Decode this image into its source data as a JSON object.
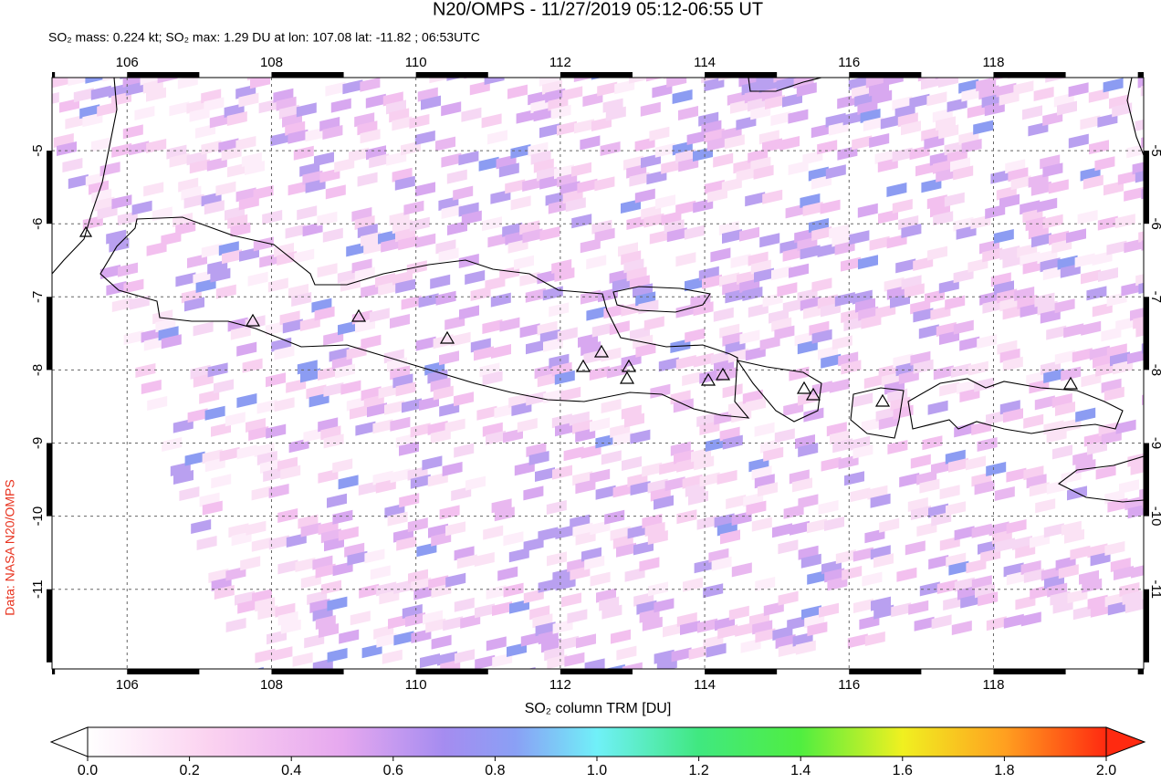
{
  "header": {
    "title": "N20/OMPS - 11/27/2019 05:12-06:55 UT",
    "subtitle": "SO₂ mass: 0.224 kt; SO₂ max: 1.29 DU at lon: 107.08 lat: -11.82 ; 06:53UTC"
  },
  "map": {
    "xlim": [
      104.96,
      120.08
    ],
    "ylim": [
      -12.09,
      -4.0
    ],
    "xticks": [
      106,
      108,
      110,
      112,
      114,
      116,
      118
    ],
    "yticks": [
      -5,
      -6,
      -7,
      -8,
      -9,
      -10,
      -11
    ],
    "credit": "Data: NASA N20/OMPS"
  },
  "colorbar": {
    "label": "SO₂ column TRM [DU]",
    "lim": [
      0,
      2
    ],
    "ticks": [
      {
        "value": 0,
        "label": "0.0"
      },
      {
        "value": 0.2,
        "label": "0.2"
      },
      {
        "value": 0.4,
        "label": "0.4"
      },
      {
        "value": 0.6,
        "label": "0.6"
      },
      {
        "value": 0.8,
        "label": "0.8"
      },
      {
        "value": 1,
        "label": "1.0"
      },
      {
        "value": 1.2,
        "label": "1.2"
      },
      {
        "value": 1.4,
        "label": "1.4"
      },
      {
        "value": 1.6,
        "label": "1.6"
      },
      {
        "value": 1.8,
        "label": "1.8"
      },
      {
        "value": 2,
        "label": "2.0"
      }
    ]
  }
}
